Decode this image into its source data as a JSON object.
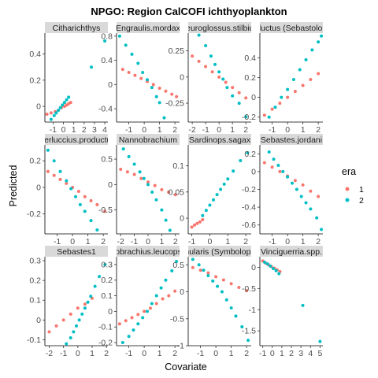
{
  "chart_data": {
    "type": "scatter",
    "title": "NPGO: Region CalCOFI ichthyoplankton",
    "xlabel": "Covariate",
    "ylabel": "Predicted",
    "legend": {
      "title": "era",
      "placement": "right",
      "entries": [
        "1",
        "2"
      ]
    },
    "colors": {
      "1": "#F8766D",
      "2": "#00BFC4"
    },
    "grid": false,
    "panels": [
      {
        "strip": "Citharichthys",
        "xlim": [
          -1.8,
          4.3
        ],
        "ylim": [
          -0.12,
          0.56
        ],
        "xticks": [
          -1,
          0,
          1,
          2,
          3,
          4
        ],
        "yticks": [
          0.0,
          0.2,
          0.4
        ],
        "series": [
          {
            "name": "1",
            "x": [
              -1.6,
              -1.2,
              -0.8,
              -0.5,
              -0.2,
              0.1,
              0.3,
              0.5,
              0.7
            ],
            "y": [
              -0.06,
              -0.05,
              -0.04,
              -0.03,
              -0.01,
              0.0,
              0.01,
              0.02,
              0.03
            ]
          },
          {
            "name": "2",
            "x": [
              -1.2,
              -0.9,
              -0.7,
              -0.5,
              -0.3,
              -0.1,
              0.1,
              0.3,
              0.5,
              2.7,
              4.0
            ],
            "y": [
              -0.1,
              -0.07,
              -0.05,
              -0.03,
              -0.01,
              0.01,
              0.03,
              0.05,
              0.07,
              0.3,
              0.5
            ]
          }
        ]
      },
      {
        "strip": "Engraulis.mordax",
        "xlim": [
          -1.8,
          2.3
        ],
        "ylim": [
          -0.62,
          0.85
        ],
        "xticks": [
          -1,
          0,
          1,
          2
        ],
        "yticks": [
          -0.4,
          0.0,
          0.4,
          0.8
        ],
        "series": [
          {
            "name": "1",
            "x": [
              -1.4,
              -1.0,
              -0.6,
              -0.2,
              0.2,
              0.6,
              1.0,
              1.4,
              1.8,
              2.1
            ],
            "y": [
              0.25,
              0.2,
              0.15,
              0.1,
              0.05,
              0.0,
              -0.06,
              -0.11,
              -0.16,
              -0.2
            ]
          },
          {
            "name": "2",
            "x": [
              -1.6,
              -1.2,
              -0.8,
              -0.4,
              -0.1,
              0.2,
              0.5,
              0.8,
              1.0,
              1.3
            ],
            "y": [
              0.8,
              0.65,
              0.5,
              0.35,
              0.2,
              0.08,
              -0.05,
              -0.2,
              -0.3,
              -0.55
            ]
          }
        ]
      },
      {
        "strip": "Leuroglossus.stilbius",
        "xlim": [
          -2.3,
          2.4
        ],
        "ylim": [
          -0.43,
          0.42
        ],
        "xticks": [
          -2,
          -1,
          0,
          1,
          2
        ],
        "yticks": [
          -0.25,
          0.0,
          0.25
        ],
        "series": [
          {
            "name": "1",
            "x": [
              -2.0,
              -1.5,
              -1.0,
              -0.5,
              0.0,
              0.5,
              1.0,
              1.5,
              2.0
            ],
            "y": [
              0.2,
              0.15,
              0.1,
              0.05,
              0.0,
              -0.05,
              -0.1,
              -0.15,
              -0.2
            ]
          },
          {
            "name": "2",
            "x": [
              -1.5,
              -1.0,
              -0.6,
              -0.3,
              0.0,
              0.3,
              0.6,
              1.0,
              1.5,
              2.0
            ],
            "y": [
              0.4,
              0.3,
              0.2,
              0.12,
              0.05,
              -0.02,
              -0.1,
              -0.18,
              -0.25,
              -0.38
            ]
          }
        ]
      },
      {
        "strip": "Merluccius.productus (Sebastolobus.ochotensis)",
        "xlim": [
          -1.8,
          2.3
        ],
        "ylim": [
          -0.25,
          0.65
        ],
        "xticks": [
          -1,
          0,
          1,
          2
        ],
        "yticks": [
          -0.2,
          0.0,
          0.2,
          0.4
        ],
        "series": [
          {
            "name": "1",
            "x": [
              -1.5,
              -1.0,
              -0.5,
              0.0,
              0.5,
              1.0,
              1.5,
              2.0
            ],
            "y": [
              -0.18,
              -0.12,
              -0.06,
              0.0,
              0.06,
              0.12,
              0.18,
              0.24
            ]
          },
          {
            "name": "2",
            "x": [
              -1.2,
              -0.8,
              -0.4,
              0.0,
              0.4,
              0.8,
              1.2,
              1.6,
              2.0,
              2.2
            ],
            "y": [
              -0.2,
              -0.1,
              0.0,
              0.08,
              0.18,
              0.28,
              0.38,
              0.48,
              0.56,
              0.62
            ]
          }
        ]
      },
      {
        "strip": "Merluccius.productus",
        "xlim": [
          -1.8,
          2.3
        ],
        "ylim": [
          -0.35,
          0.32
        ],
        "xticks": [
          -1,
          0,
          1,
          2
        ],
        "yticks": [
          -0.2,
          0.0,
          0.2
        ],
        "series": [
          {
            "name": "1",
            "x": [
              -1.6,
              -1.2,
              -0.8,
              -0.4,
              0.0,
              0.4,
              0.8,
              1.2,
              1.6,
              2.1
            ],
            "y": [
              0.12,
              0.09,
              0.06,
              0.03,
              0.0,
              -0.03,
              -0.07,
              -0.1,
              -0.13,
              -0.18
            ]
          },
          {
            "name": "2",
            "x": [
              -1.6,
              -1.2,
              -0.8,
              -0.4,
              -0.1,
              0.2,
              0.5,
              0.8,
              1.2,
              1.6
            ],
            "y": [
              0.28,
              0.2,
              0.12,
              0.05,
              -0.01,
              -0.07,
              -0.13,
              -0.18,
              -0.25,
              -0.32
            ]
          }
        ]
      },
      {
        "strip": "Nannobrachium",
        "xlim": [
          -2.3,
          2.3
        ],
        "ylim": [
          -0.97,
          0.78
        ],
        "xticks": [
          -2,
          -1,
          0,
          1,
          2
        ],
        "yticks": [
          -0.5,
          0.0,
          0.5
        ],
        "series": [
          {
            "name": "1",
            "x": [
              -2.0,
              -1.5,
              -1.0,
              -0.5,
              0.0,
              0.5,
              1.0,
              1.5,
              2.0
            ],
            "y": [
              0.3,
              0.25,
              0.2,
              0.12,
              0.05,
              -0.02,
              -0.1,
              -0.15,
              -0.2
            ]
          },
          {
            "name": "2",
            "x": [
              -1.8,
              -1.4,
              -1.0,
              -0.6,
              -0.3,
              0.0,
              0.3,
              0.6,
              1.0,
              1.3,
              1.6
            ],
            "y": [
              0.7,
              0.55,
              0.4,
              0.25,
              0.12,
              0.0,
              -0.15,
              -0.3,
              -0.5,
              -0.7,
              -0.9
            ]
          }
        ]
      },
      {
        "strip": "Sardinops.sagax",
        "xlim": [
          -1.2,
          2.3
        ],
        "ylim": [
          -0.03,
          0.14
        ],
        "xticks": [
          -1,
          0,
          1,
          2
        ],
        "yticks": [
          0.0,
          0.05,
          0.1
        ],
        "series": [
          {
            "name": "1",
            "x": [
              -1.0,
              -0.85,
              -0.7,
              -0.55,
              -0.4
            ],
            "y": [
              -0.017,
              -0.013,
              -0.01,
              -0.007,
              -0.003
            ]
          },
          {
            "name": "2",
            "x": [
              -0.4,
              -0.2,
              0.0,
              0.2,
              0.4,
              0.6,
              0.8,
              1.0,
              1.3,
              1.7,
              2.1
            ],
            "y": [
              0.005,
              0.015,
              0.025,
              0.035,
              0.045,
              0.055,
              0.065,
              0.075,
              0.09,
              0.11,
              0.125
            ]
          }
        ]
      },
      {
        "strip": "Sebastes.jordani",
        "xlim": [
          -1.8,
          2.3
        ],
        "ylim": [
          -0.7,
          0.3
        ],
        "xticks": [
          -1,
          0,
          1,
          2
        ],
        "yticks": [
          -0.6,
          -0.4,
          -0.2,
          0.0,
          0.2
        ],
        "series": [
          {
            "name": "1",
            "x": [
              -1.5,
              -1.0,
              -0.5,
              0.0,
              0.5,
              1.0,
              1.5,
              2.0
            ],
            "y": [
              0.1,
              0.05,
              0.0,
              -0.05,
              -0.1,
              -0.15,
              -0.22,
              -0.28
            ]
          },
          {
            "name": "2",
            "x": [
              -1.2,
              -0.9,
              -0.6,
              -0.3,
              0.0,
              0.3,
              0.6,
              0.9,
              1.2,
              1.5,
              1.9,
              2.2
            ],
            "y": [
              0.22,
              0.14,
              0.07,
              0.0,
              -0.06,
              -0.13,
              -0.2,
              -0.28,
              -0.35,
              -0.42,
              -0.52,
              -0.65
            ]
          }
        ]
      },
      {
        "strip": "Sebastes1",
        "xlim": [
          -2.3,
          2.1
        ],
        "ylim": [
          -0.13,
          0.32
        ],
        "xticks": [
          -2,
          -1,
          0,
          1,
          2
        ],
        "yticks": [
          -0.1,
          0.0,
          0.1,
          0.2,
          0.3
        ],
        "series": [
          {
            "name": "1",
            "x": [
              -2.0,
              -1.5,
              -1.0,
              -0.5,
              0.0,
              0.5,
              1.0
            ],
            "y": [
              -0.06,
              -0.03,
              0.0,
              0.03,
              0.06,
              0.08,
              0.11
            ]
          },
          {
            "name": "2",
            "x": [
              -0.8,
              -0.5,
              -0.3,
              -0.1,
              0.1,
              0.3,
              0.5,
              0.7,
              0.9,
              1.2,
              1.5,
              1.9
            ],
            "y": [
              -0.12,
              -0.09,
              -0.06,
              -0.03,
              0.0,
              0.03,
              0.06,
              0.09,
              0.12,
              0.17,
              0.22,
              0.28
            ]
          }
        ]
      },
      {
        "strip": "Stenobrachius.leucopsarus",
        "xlim": [
          -1.8,
          2.3
        ],
        "ylim": [
          -0.22,
          0.35
        ],
        "xticks": [
          -1,
          0,
          1,
          2
        ],
        "yticks": [
          -0.2,
          -0.1,
          0.0,
          0.1,
          0.2,
          0.3
        ],
        "series": [
          {
            "name": "1",
            "x": [
              -1.6,
              -1.2,
              -0.8,
              -0.4,
              0.0,
              0.4,
              0.8,
              1.2,
              1.6,
              2.0
            ],
            "y": [
              -0.08,
              -0.06,
              -0.04,
              -0.02,
              0.0,
              0.02,
              0.05,
              0.08,
              0.1,
              0.13
            ]
          },
          {
            "name": "2",
            "x": [
              -1.4,
              -1.0,
              -0.7,
              -0.4,
              -0.1,
              0.2,
              0.5,
              0.8,
              1.1,
              1.4,
              1.8,
              2.1
            ],
            "y": [
              -0.2,
              -0.16,
              -0.12,
              -0.08,
              -0.04,
              0.0,
              0.05,
              0.1,
              0.15,
              0.2,
              0.26,
              0.32
            ]
          }
        ]
      },
      {
        "strip": "Tarletonbeania.crenularis (Symbolophorus.symmetricus)",
        "xlim": [
          -1.8,
          2.3
        ],
        "ylim": [
          -1.0,
          0.65
        ],
        "xticks": [
          -1,
          0,
          1,
          2
        ],
        "yticks": [
          -1.0,
          -0.5,
          0.0,
          0.5
        ],
        "series": [
          {
            "name": "1",
            "x": [
              -1.5,
              -1.0,
              -0.5,
              0.0,
              0.5,
              1.0,
              1.5,
              2.0
            ],
            "y": [
              0.45,
              0.4,
              0.35,
              0.28,
              0.22,
              0.15,
              0.08,
              0.02
            ]
          },
          {
            "name": "2",
            "x": [
              -1.5,
              -1.1,
              -0.8,
              -0.5,
              -0.2,
              0.1,
              0.4,
              0.7,
              1.0,
              1.3,
              1.7,
              2.1
            ],
            "y": [
              0.6,
              0.5,
              0.4,
              0.3,
              0.2,
              0.1,
              0.0,
              -0.15,
              -0.3,
              -0.45,
              -0.65,
              -0.9
            ]
          }
        ]
      },
      {
        "strip": "Vinciguerria.spp.",
        "xlim": [
          -1.3,
          5.3
        ],
        "ylim": [
          -1.85,
          0.25
        ],
        "xticks": [
          -1,
          0,
          1,
          2,
          3,
          4,
          5
        ],
        "yticks": [
          -1.5,
          -1.0,
          -0.5,
          0.0
        ],
        "series": [
          {
            "name": "1",
            "x": [
              -1.0,
              -0.7,
              -0.4,
              -0.1,
              0.2,
              0.5,
              0.8
            ],
            "y": [
              0.15,
              0.1,
              0.06,
              0.02,
              -0.02,
              -0.06,
              -0.1
            ]
          },
          {
            "name": "2",
            "x": [
              -0.8,
              -0.5,
              -0.2,
              0.1,
              0.4,
              0.7,
              3.2,
              5.0
            ],
            "y": [
              0.12,
              0.08,
              0.03,
              -0.03,
              -0.08,
              -0.15,
              -0.9,
              -1.75
            ]
          }
        ]
      }
    ]
  }
}
